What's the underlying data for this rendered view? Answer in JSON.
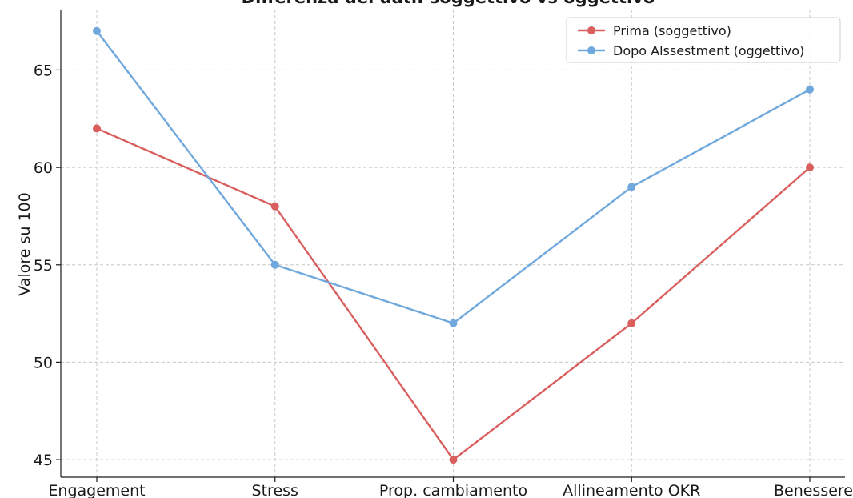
{
  "chart_data": {
    "type": "line",
    "title": "Differenza dei dati: soggettivo vs oggettivo",
    "xlabel": "",
    "ylabel": "Valore su 100",
    "categories": [
      "Engagement",
      "Stress",
      "Prop. cambiamento",
      "Allineamento OKR",
      "Benessere"
    ],
    "yticks": [
      45,
      50,
      55,
      60,
      65
    ],
    "ylim": [
      44.1,
      68.1
    ],
    "grid": true,
    "legend_position": "top-right",
    "series": [
      {
        "name": "Prima (soggettivo)",
        "color": "#d95f5f",
        "values": [
          62,
          58,
          45,
          52,
          60
        ]
      },
      {
        "name": "Dopo Alssestment (oggettivo)",
        "color": "#6fa8dc",
        "values": [
          67,
          55,
          52,
          59,
          64
        ]
      }
    ]
  }
}
